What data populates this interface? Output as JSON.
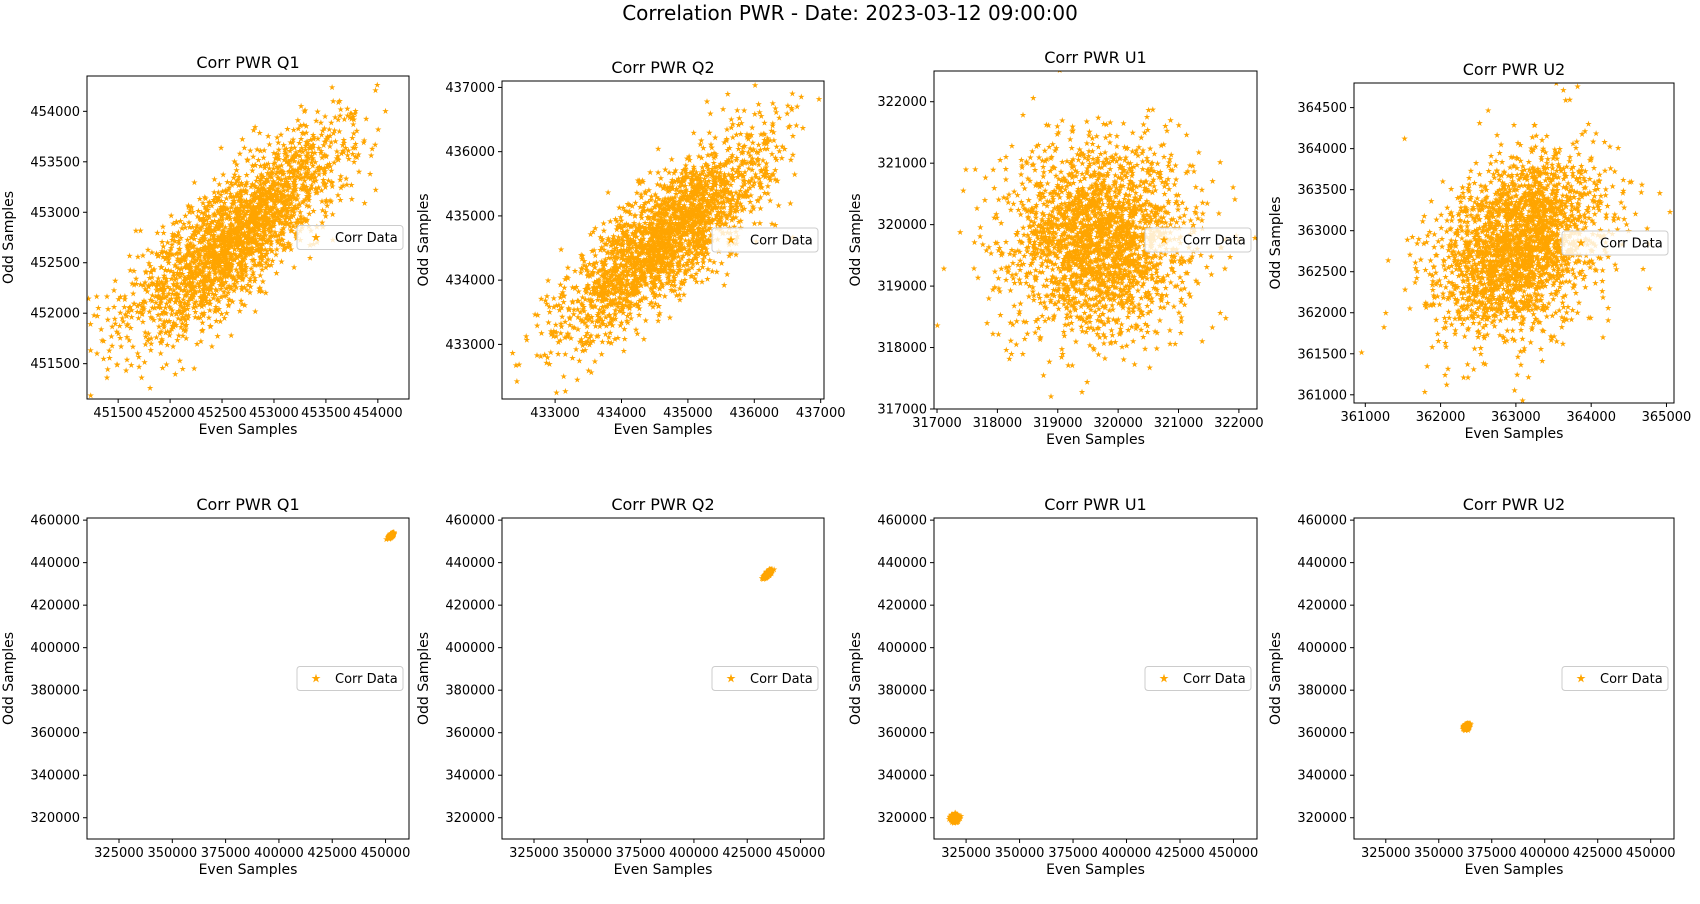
{
  "suptitle": "Correlation PWR - Date: 2023-03-12 09:00:00",
  "style": {
    "marker_color": "#ffa500",
    "axis_color": "#000000",
    "marker": "star"
  },
  "chart_data": [
    {
      "type": "scatter",
      "title": "Corr PWR Q1",
      "xlabel": "Even Samples",
      "ylabel": "Odd Samples",
      "xlim": [
        451200,
        454300
      ],
      "ylim": [
        451150,
        454350
      ],
      "xticks": [
        451500,
        452000,
        452500,
        453000,
        453500,
        454000
      ],
      "xtick_labels": [
        "451500",
        "452000",
        "452500",
        "453000",
        "453500",
        "454000"
      ],
      "yticks": [
        451500,
        452000,
        452500,
        453000,
        453500,
        454000
      ],
      "ytick_labels": [
        "451500",
        "452000",
        "452500",
        "453000",
        "453500",
        "454000"
      ],
      "legend": {
        "label": "Corr Data",
        "placement": "center-right"
      },
      "cloud": {
        "center": [
          452650,
          452780
        ],
        "sigma": [
          520,
          520
        ],
        "rho": 0.8,
        "n": 2200
      }
    },
    {
      "type": "scatter",
      "title": "Corr PWR Q2",
      "xlabel": "Even Samples",
      "ylabel": "Odd Samples",
      "xlim": [
        432200,
        437050
      ],
      "ylim": [
        432150,
        437100
      ],
      "xticks": [
        433000,
        434000,
        435000,
        436000,
        437000
      ],
      "xtick_labels": [
        "433000",
        "434000",
        "435000",
        "436000",
        "437000"
      ],
      "yticks": [
        433000,
        434000,
        435000,
        436000,
        437000
      ],
      "ytick_labels": [
        "433000",
        "434000",
        "435000",
        "436000",
        "437000"
      ],
      "legend": {
        "label": "Corr Data",
        "placement": "center-right"
      },
      "cloud": {
        "center": [
          434650,
          434650
        ],
        "sigma": [
          780,
          780
        ],
        "rho": 0.8,
        "n": 2200
      }
    },
    {
      "type": "scatter",
      "title": "Corr PWR U1",
      "xlabel": "Even Samples",
      "ylabel": "Odd Samples",
      "xlim": [
        316950,
        322300
      ],
      "ylim": [
        317000,
        322500
      ],
      "xticks": [
        317000,
        318000,
        319000,
        320000,
        321000,
        322000
      ],
      "xtick_labels": [
        "317000",
        "318000",
        "319000",
        "320000",
        "321000",
        "322000"
      ],
      "yticks": [
        317000,
        318000,
        319000,
        320000,
        321000,
        322000
      ],
      "ytick_labels": [
        "317000",
        "318000",
        "319000",
        "320000",
        "321000",
        "322000"
      ],
      "legend": {
        "label": "Corr Data",
        "placement": "center-right"
      },
      "cloud": {
        "center": [
          319650,
          319750
        ],
        "sigma": [
          780,
          780
        ],
        "rho": 0.0,
        "n": 2200
      }
    },
    {
      "type": "scatter",
      "title": "Corr PWR U2",
      "xlabel": "Even Samples",
      "ylabel": "Odd Samples",
      "xlim": [
        360850,
        365100
      ],
      "ylim": [
        360900,
        364800
      ],
      "xticks": [
        361000,
        362000,
        363000,
        364000,
        365000
      ],
      "xtick_labels": [
        "361000",
        "362000",
        "363000",
        "364000",
        "365000"
      ],
      "yticks": [
        361000,
        361500,
        362000,
        362500,
        363000,
        363500,
        364000,
        364500
      ],
      "ytick_labels": [
        "361000",
        "361500",
        "362000",
        "362500",
        "363000",
        "363500",
        "364000",
        "364500"
      ],
      "legend": {
        "label": "Corr Data",
        "placement": "center-right"
      },
      "cloud": {
        "center": [
          363050,
          362850
        ],
        "sigma": [
          560,
          560
        ],
        "rho": 0.35,
        "n": 2200
      }
    },
    {
      "type": "scatter",
      "title": "Corr PWR Q1",
      "xlabel": "Even Samples",
      "ylabel": "Odd Samples",
      "xlim": [
        310000,
        461000
      ],
      "ylim": [
        310000,
        461000
      ],
      "xticks": [
        325000,
        350000,
        375000,
        400000,
        425000,
        450000
      ],
      "xtick_labels": [
        "325000",
        "350000",
        "375000",
        "400000",
        "425000",
        "450000"
      ],
      "yticks": [
        320000,
        340000,
        360000,
        380000,
        400000,
        420000,
        440000,
        460000
      ],
      "ytick_labels": [
        "320000",
        "340000",
        "360000",
        "380000",
        "400000",
        "420000",
        "440000",
        "460000"
      ],
      "legend": {
        "label": "Corr Data",
        "placement": "center-right"
      },
      "cloud": {
        "center": [
          452650,
          452780
        ],
        "sigma": [
          520,
          520
        ],
        "rho": 0.8,
        "n": 700
      }
    },
    {
      "type": "scatter",
      "title": "Corr PWR Q2",
      "xlabel": "Even Samples",
      "ylabel": "Odd Samples",
      "xlim": [
        310000,
        461000
      ],
      "ylim": [
        310000,
        461000
      ],
      "xticks": [
        325000,
        350000,
        375000,
        400000,
        425000,
        450000
      ],
      "xtick_labels": [
        "325000",
        "350000",
        "375000",
        "400000",
        "425000",
        "450000"
      ],
      "yticks": [
        320000,
        340000,
        360000,
        380000,
        400000,
        420000,
        440000,
        460000
      ],
      "ytick_labels": [
        "320000",
        "340000",
        "360000",
        "380000",
        "400000",
        "420000",
        "440000",
        "460000"
      ],
      "legend": {
        "label": "Corr Data",
        "placement": "center-right"
      },
      "cloud": {
        "center": [
          434650,
          434650
        ],
        "sigma": [
          780,
          780
        ],
        "rho": 0.8,
        "n": 700
      }
    },
    {
      "type": "scatter",
      "title": "Corr PWR U1",
      "xlabel": "Even Samples",
      "ylabel": "Odd Samples",
      "xlim": [
        310000,
        461000
      ],
      "ylim": [
        310000,
        461000
      ],
      "xticks": [
        325000,
        350000,
        375000,
        400000,
        425000,
        450000
      ],
      "xtick_labels": [
        "325000",
        "350000",
        "375000",
        "400000",
        "425000",
        "450000"
      ],
      "yticks": [
        320000,
        340000,
        360000,
        380000,
        400000,
        420000,
        440000,
        460000
      ],
      "ytick_labels": [
        "320000",
        "340000",
        "360000",
        "380000",
        "400000",
        "420000",
        "440000",
        "460000"
      ],
      "legend": {
        "label": "Corr Data",
        "placement": "center-right"
      },
      "cloud": {
        "center": [
          319650,
          319750
        ],
        "sigma": [
          780,
          780
        ],
        "rho": 0.0,
        "n": 700
      }
    },
    {
      "type": "scatter",
      "title": "Corr PWR U2",
      "xlabel": "Even Samples",
      "ylabel": "Odd Samples",
      "xlim": [
        310000,
        461000
      ],
      "ylim": [
        310000,
        461000
      ],
      "xticks": [
        325000,
        350000,
        375000,
        400000,
        425000,
        450000
      ],
      "xtick_labels": [
        "325000",
        "350000",
        "375000",
        "400000",
        "425000",
        "450000"
      ],
      "yticks": [
        320000,
        340000,
        360000,
        380000,
        400000,
        420000,
        440000,
        460000
      ],
      "ytick_labels": [
        "320000",
        "340000",
        "360000",
        "380000",
        "400000",
        "420000",
        "440000",
        "460000"
      ],
      "legend": {
        "label": "Corr Data",
        "placement": "center-right"
      },
      "cloud": {
        "center": [
          363050,
          362850
        ],
        "sigma": [
          560,
          560
        ],
        "rho": 0.35,
        "n": 700
      }
    }
  ]
}
